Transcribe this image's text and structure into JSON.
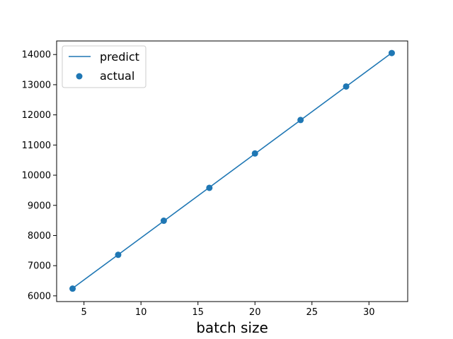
{
  "chart_data": {
    "type": "line",
    "title": "",
    "xlabel": "batch size",
    "ylabel": "",
    "xlim": [
      2.6,
      33.4
    ],
    "ylim": [
      5810,
      14450
    ],
    "xticks": [
      5,
      10,
      15,
      20,
      25,
      30
    ],
    "yticks": [
      6000,
      7000,
      8000,
      9000,
      10000,
      11000,
      12000,
      13000,
      14000
    ],
    "grid": false,
    "legend_position": "top-left",
    "series": [
      {
        "name": "predict",
        "kind": "line",
        "color": "#1f77b4",
        "x": [
          4,
          8,
          12,
          16,
          20,
          24,
          28,
          32
        ],
        "y": [
          6250,
          7365,
          8480,
          9595,
          10710,
          11825,
          12940,
          14055
        ]
      },
      {
        "name": "actual",
        "kind": "scatter",
        "color": "#1f77b4",
        "x": [
          4,
          8,
          12,
          16,
          20,
          24,
          28,
          32
        ],
        "y": [
          6240,
          7360,
          8490,
          9580,
          10720,
          11830,
          12940,
          14050
        ]
      }
    ]
  }
}
